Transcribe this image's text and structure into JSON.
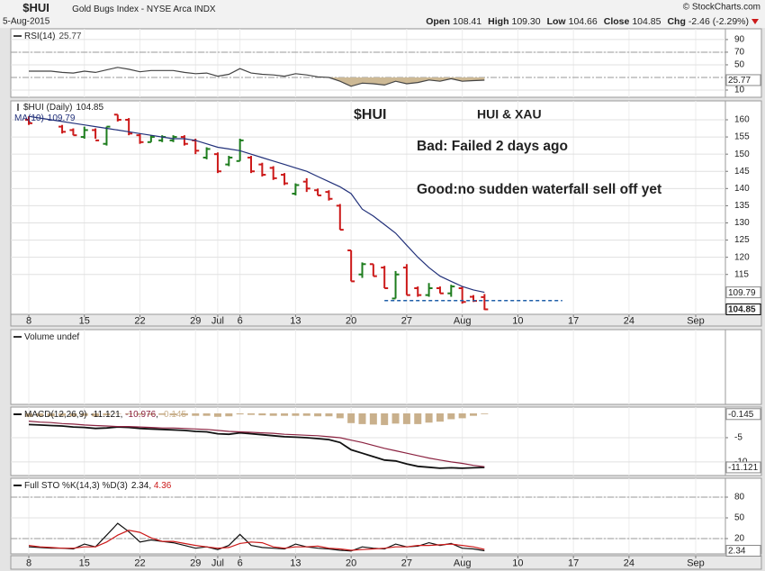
{
  "chart_data": {
    "type": "stock",
    "header": {
      "symbol": "$HUI",
      "name": "Gold Bugs Index - NYSE Arca INDX",
      "date": "5-Aug-2015",
      "source": "© StockCharts.com",
      "quote": [
        {
          "label": "Open",
          "value": "108.41"
        },
        {
          "label": "High",
          "value": "109.30"
        },
        {
          "label": "Low",
          "value": "104.66"
        },
        {
          "label": "Close",
          "value": "104.85"
        },
        {
          "label": "Chg",
          "value": "-2.46 (-2.29%)"
        }
      ]
    },
    "x": [
      "2015-06-08",
      "2015-06-09",
      "2015-06-10",
      "2015-06-11",
      "2015-06-12",
      "2015-06-15",
      "2015-06-16",
      "2015-06-17",
      "2015-06-18",
      "2015-06-19",
      "2015-06-22",
      "2015-06-23",
      "2015-06-24",
      "2015-06-25",
      "2015-06-26",
      "2015-06-29",
      "2015-06-30",
      "2015-07-01",
      "2015-07-02",
      "2015-07-06",
      "2015-07-07",
      "2015-07-08",
      "2015-07-09",
      "2015-07-10",
      "2015-07-13",
      "2015-07-14",
      "2015-07-15",
      "2015-07-16",
      "2015-07-17",
      "2015-07-20",
      "2015-07-21",
      "2015-07-22",
      "2015-07-23",
      "2015-07-24",
      "2015-07-27",
      "2015-07-28",
      "2015-07-29",
      "2015-07-30",
      "2015-07-31",
      "2015-08-03",
      "2015-08-04",
      "2015-08-05"
    ],
    "xticks": [
      {
        "value": "2015-06-08",
        "label": "8"
      },
      {
        "value": "2015-06-15",
        "label": "15"
      },
      {
        "value": "2015-06-22",
        "label": "22"
      },
      {
        "value": "2015-06-29",
        "label": "29"
      },
      {
        "value": "2015-07-01",
        "label": "Jul"
      },
      {
        "value": "2015-07-06",
        "label": "6"
      },
      {
        "value": "2015-07-13",
        "label": "13"
      },
      {
        "value": "2015-07-20",
        "label": "20"
      },
      {
        "value": "2015-07-27",
        "label": "27"
      },
      {
        "value": "2015-08-03",
        "label": "Aug"
      },
      {
        "value": "2015-08-10",
        "label": "10"
      },
      {
        "value": "2015-08-17",
        "label": "17"
      },
      {
        "value": "2015-08-24",
        "label": "24"
      },
      {
        "value": "2015-09-01",
        "label": "Sep"
      }
    ],
    "panels": [
      {
        "type": "line",
        "title": "RSI(14)",
        "value_separator": ", ",
        "ylim": [
          -1.4,
          107
        ],
        "yticks": [
          10,
          50,
          70,
          90
        ],
        "levels": [
          70,
          30
        ],
        "oversold": 30,
        "fill_color": "#cdb995",
        "series": [
          {
            "color": "#444444",
            "tag": true,
            "values": [
              40,
              40,
              40,
              38,
              37,
              40,
              38,
              42,
              46,
              43,
              39,
              41,
              41,
              41,
              38,
              36,
              37,
              32,
              35,
              44,
              37,
              35,
              34,
              32,
              36,
              34,
              31,
              30,
              24,
              16,
              21,
              20,
              18,
              24,
              20,
              22,
              26,
              24,
              28,
              24,
              25,
              25.77
            ]
          }
        ]
      },
      {
        "type": "ohlc",
        "name": "$HUI (Daily)",
        "tag": true,
        "ylim": [
          103.4,
          165.5
        ],
        "yticks": [
          115,
          120,
          125,
          130,
          135,
          140,
          145,
          150,
          155,
          160
        ],
        "up_color": "#1e7d1e",
        "down_color": "#cc1a1a",
        "open": [
          160,
          null,
          null,
          158,
          157,
          155,
          157,
          153,
          161.5,
          160,
          155.5,
          153.5,
          154,
          154,
          155,
          154,
          149,
          150,
          147,
          148,
          149,
          147,
          146,
          144,
          138.5,
          142,
          139.5,
          139,
          135,
          122,
          115,
          118,
          117,
          108,
          117,
          111,
          109,
          111,
          109.5,
          111,
          108.5,
          108.41
        ],
        "high": [
          161,
          null,
          null,
          158.5,
          157.5,
          158,
          157.5,
          158,
          161.5,
          160.5,
          156,
          155.5,
          155.5,
          155.5,
          155.5,
          154.5,
          152,
          150.5,
          149.5,
          154.5,
          149.5,
          147.5,
          146.5,
          144.5,
          141.5,
          143,
          140,
          139.5,
          135.5,
          122,
          118.5,
          118,
          117.5,
          116,
          118,
          111.5,
          112.5,
          111.5,
          112,
          111.5,
          109,
          109.3
        ],
        "low": [
          158.5,
          null,
          null,
          156,
          155.5,
          154.5,
          154.5,
          152.5,
          159.5,
          155.5,
          153,
          153.5,
          153.5,
          153.5,
          152.5,
          150,
          148.5,
          144.5,
          146.5,
          148,
          144.5,
          143.5,
          142.5,
          141,
          138,
          139,
          138,
          136.5,
          128,
          113,
          114,
          114.5,
          111,
          108,
          109,
          108.5,
          108.5,
          109.5,
          108.5,
          106.5,
          107,
          104.66
        ],
        "close": [
          159,
          null,
          null,
          156.5,
          155.5,
          157,
          154,
          158,
          160,
          156,
          153.5,
          155,
          155,
          155,
          153,
          151,
          151.5,
          145,
          149,
          154,
          145,
          144,
          143,
          141.5,
          141,
          140,
          138,
          137,
          128,
          113,
          118,
          114.5,
          111,
          115,
          109,
          109,
          111,
          109.5,
          111.5,
          107,
          107.3,
          104.85
        ],
        "overlays": [
          {
            "name": "MA(10)",
            "color": "#22317a",
            "tag": true,
            "values": [
              161,
              160.5,
              160,
              159.5,
              159,
              158.5,
              158,
              157.5,
              157,
              156.5,
              156,
              155.5,
              155,
              154.5,
              154.5,
              154,
              153,
              152,
              151.5,
              151,
              150,
              149,
              148,
              147,
              146,
              145,
              143.5,
              142,
              140.5,
              138.5,
              134,
              132,
              129.5,
              127,
              123.5,
              120,
              117,
              114.5,
              113,
              111.5,
              110.5,
              109.79
            ]
          }
        ],
        "hline": {
          "value": 107.4,
          "x": [
            "2015-07-23",
            "2015-08-14"
          ],
          "color": "#1f5fa8"
        },
        "annotations": [
          {
            "text": "$HUI",
            "color": "#1b6fc1"
          },
          {
            "text": "HUI & XAU",
            "color": "#c0181d"
          },
          {
            "text": "Bad: Failed 2 days ago",
            "color": "#e0448f"
          },
          {
            "text": "Good:no sudden waterfall sell off yet",
            "color": "#e0448f"
          }
        ]
      },
      {
        "type": "bar",
        "title": "Volume undef"
      },
      {
        "type": "line",
        "title": "MACD(12,26,9)",
        "value_separator": ", ",
        "ylim": [
          -12.8,
          1.3
        ],
        "yticks": [
          -5,
          -10
        ],
        "series": [
          {
            "color": "#111111",
            "tag": true,
            "width": 1.8,
            "values": [
              -2.3,
              -2.4,
              -2.5,
              -2.6,
              -2.8,
              -2.9,
              -3.1,
              -3.0,
              -2.8,
              -2.9,
              -3.1,
              -3.2,
              -3.3,
              -3.4,
              -3.5,
              -3.7,
              -3.8,
              -4.2,
              -4.3,
              -4.0,
              -4.2,
              -4.4,
              -4.6,
              -4.8,
              -4.9,
              -5.0,
              -5.2,
              -5.4,
              -6.0,
              -7.5,
              -8.2,
              -8.9,
              -9.6,
              -9.8,
              -10.4,
              -10.9,
              -11.1,
              -11.3,
              -11.2,
              -11.3,
              -11.2,
              -11.121
            ]
          },
          {
            "color": "#8b2240",
            "values": [
              -1.6,
              -1.8,
              -1.9,
              -2.1,
              -2.2,
              -2.4,
              -2.5,
              -2.6,
              -2.7,
              -2.7,
              -2.8,
              -2.9,
              -3.0,
              -3.0,
              -3.1,
              -3.2,
              -3.3,
              -3.5,
              -3.7,
              -3.8,
              -3.9,
              -4.0,
              -4.1,
              -4.3,
              -4.4,
              -4.5,
              -4.6,
              -4.8,
              -5.0,
              -5.5,
              -6.0,
              -6.6,
              -7.2,
              -7.7,
              -8.2,
              -8.7,
              -9.2,
              -9.6,
              -10.0,
              -10.3,
              -10.7,
              -10.976
            ]
          },
          {
            "color": "#c9b08c",
            "style": "histogram",
            "tag": true,
            "values": [
              -0.7,
              -0.6,
              -0.6,
              -0.5,
              -0.6,
              -0.5,
              -0.6,
              -0.4,
              -0.1,
              -0.2,
              -0.3,
              -0.3,
              -0.3,
              -0.4,
              -0.4,
              -0.5,
              -0.5,
              -0.7,
              -0.6,
              -0.2,
              -0.3,
              -0.4,
              -0.5,
              -0.5,
              -0.5,
              -0.5,
              -0.6,
              -0.6,
              -1.0,
              -2.0,
              -2.2,
              -2.3,
              -2.4,
              -2.1,
              -2.2,
              -2.2,
              -1.9,
              -1.7,
              -1.2,
              -1.0,
              -0.5,
              -0.145
            ]
          }
        ]
      },
      {
        "type": "line",
        "title": "Full STO %K(14,3) %D(3)",
        "value_separator": ", ",
        "ylim": [
          -2.2,
          107.4
        ],
        "yticks": [
          20,
          50,
          80
        ],
        "levels": [
          80,
          20
        ],
        "series": [
          {
            "color": "#111111",
            "tag": true,
            "values": [
              8,
              7,
              6,
              6,
              5,
              12,
              8,
              25,
              42,
              30,
              15,
              18,
              16,
              14,
              10,
              6,
              8,
              4,
              10,
              26,
              10,
              7,
              6,
              5,
              12,
              8,
              6,
              5,
              3,
              2,
              8,
              6,
              5,
              12,
              8,
              9,
              14,
              10,
              13,
              6,
              5,
              2.34
            ]
          },
          {
            "color": "#cc1a1a",
            "values": [
              10,
              8,
              7,
              6,
              6,
              8,
              8,
              15,
              25,
              32,
              29,
              21,
              16,
              16,
              13,
              10,
              8,
              6,
              7,
              13,
              15,
              14,
              8,
              6,
              8,
              8,
              9,
              6,
              5,
              3,
              4,
              5,
              6,
              8,
              8,
              10,
              10,
              11,
              12,
              10,
              8,
              4.36
            ]
          }
        ]
      }
    ]
  }
}
